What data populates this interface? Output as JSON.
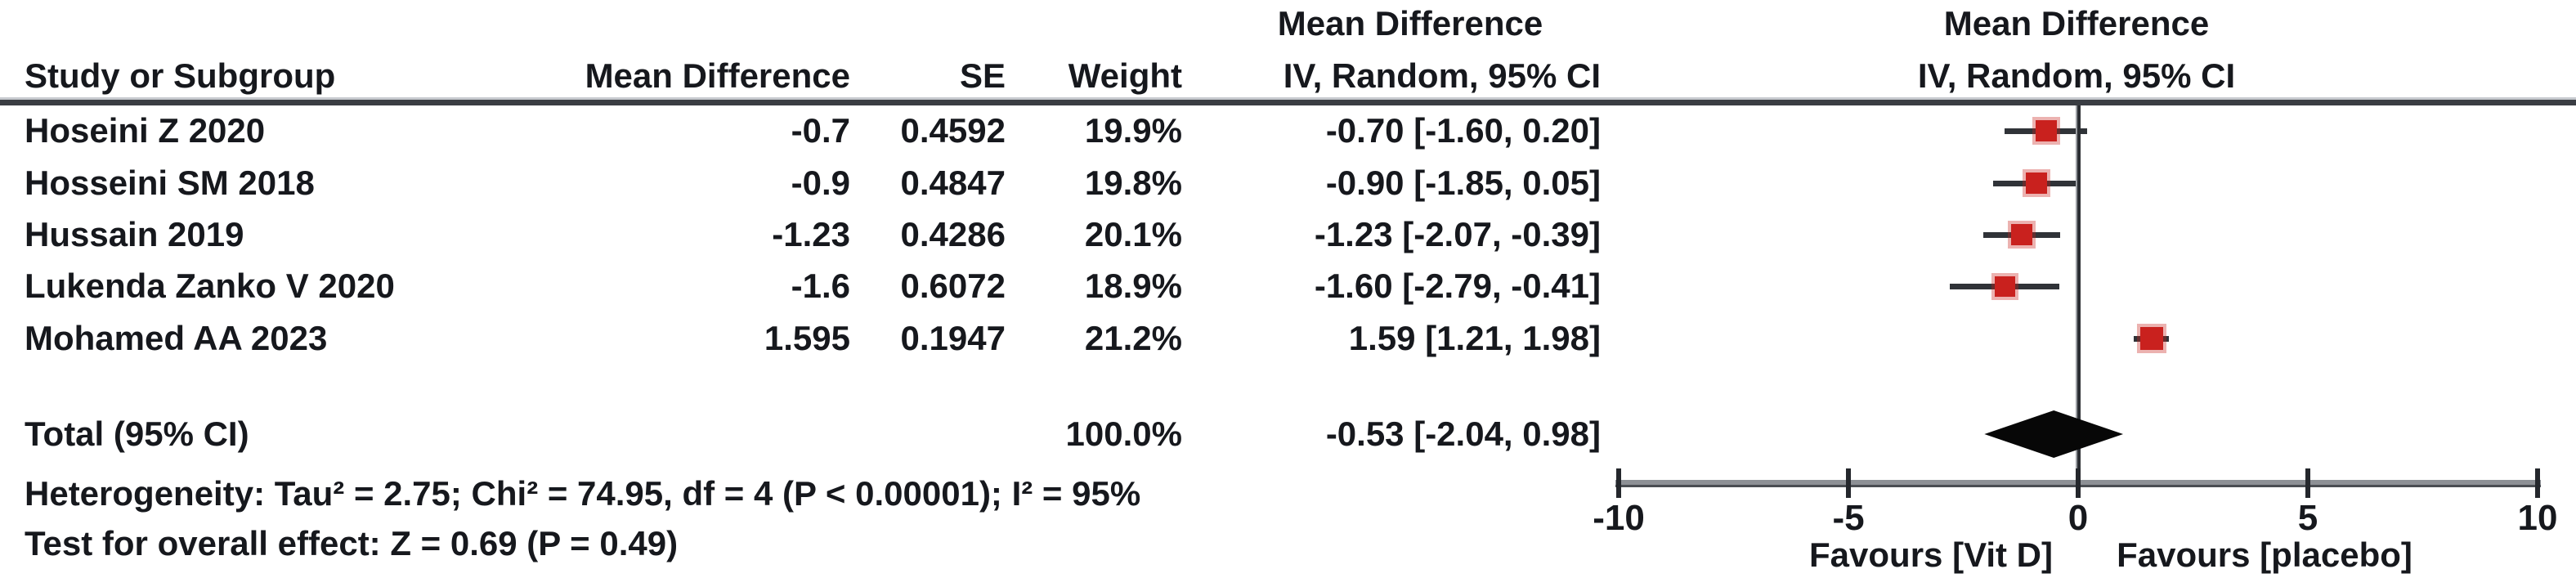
{
  "figure": {
    "columns": {
      "study": "Study or Subgroup",
      "mean_difference": "Mean Difference",
      "se": "SE",
      "weight": "Weight",
      "iv_ci": "IV, Random, 95% CI"
    },
    "effect_col_header": {
      "line1": "Mean Difference",
      "line2": "IV, Random, 95% CI"
    },
    "plot_header": {
      "line1": "Mean Difference",
      "line2": "IV, Random, 95% CI"
    },
    "total_row": {
      "label": "Total (95% CI)",
      "weight": "100.0%",
      "ci_text": "-0.53 [-2.04, 0.98]"
    },
    "heterogeneity": "Heterogeneity: Tau² = 2.75; Chi² = 74.95, df = 4 (P < 0.00001); I² = 95%",
    "overall_effect": "Test for overall effect: Z = 0.69 (P = 0.49)"
  },
  "chart_data": {
    "type": "forest",
    "effect_measure": "Mean Difference",
    "model": "IV, Random, 95% CI",
    "studies": [
      {
        "label": "Hoseini Z 2020",
        "md_text": "-0.7",
        "se_text": "0.4592",
        "weight_text": "19.9%",
        "ci_text": "-0.70 [-1.60, 0.20]",
        "md": -0.7,
        "ci_low": -1.6,
        "ci_high": 0.2,
        "weight_pct": 19.9
      },
      {
        "label": "Hosseini SM 2018",
        "md_text": "-0.9",
        "se_text": "0.4847",
        "weight_text": "19.8%",
        "ci_text": "-0.90 [-1.85, 0.05]",
        "md": -0.9,
        "ci_low": -1.85,
        "ci_high": 0.05,
        "weight_pct": 19.8
      },
      {
        "label": "Hussain 2019",
        "md_text": "-1.23",
        "se_text": "0.4286",
        "weight_text": "20.1%",
        "ci_text": "-1.23 [-2.07, -0.39]",
        "md": -1.23,
        "ci_low": -2.07,
        "ci_high": -0.39,
        "weight_pct": 20.1
      },
      {
        "label": "Lukenda Zanko V 2020",
        "md_text": "-1.6",
        "se_text": "0.6072",
        "weight_text": "18.9%",
        "ci_text": "-1.60 [-2.79, -0.41]",
        "md": -1.6,
        "ci_low": -2.79,
        "ci_high": -0.41,
        "weight_pct": 18.9
      },
      {
        "label": "Mohamed AA 2023",
        "md_text": "1.595",
        "se_text": "0.1947",
        "weight_text": "21.2%",
        "ci_text": "1.59 [1.21, 1.98]",
        "md": 1.595,
        "ci_low": 1.21,
        "ci_high": 1.98,
        "weight_pct": 21.2
      }
    ],
    "total": {
      "md": -0.53,
      "ci_low": -2.04,
      "ci_high": 0.98,
      "weight_pct": 100.0
    },
    "x_ticks": [
      -10,
      -5,
      0,
      5,
      10
    ],
    "xlim": [
      -10,
      10
    ],
    "favours_left": "Favours [Vit D]",
    "favours_right": "Favours [placebo]",
    "marker_color": "#c9211e",
    "diamond_color": "#070707"
  }
}
